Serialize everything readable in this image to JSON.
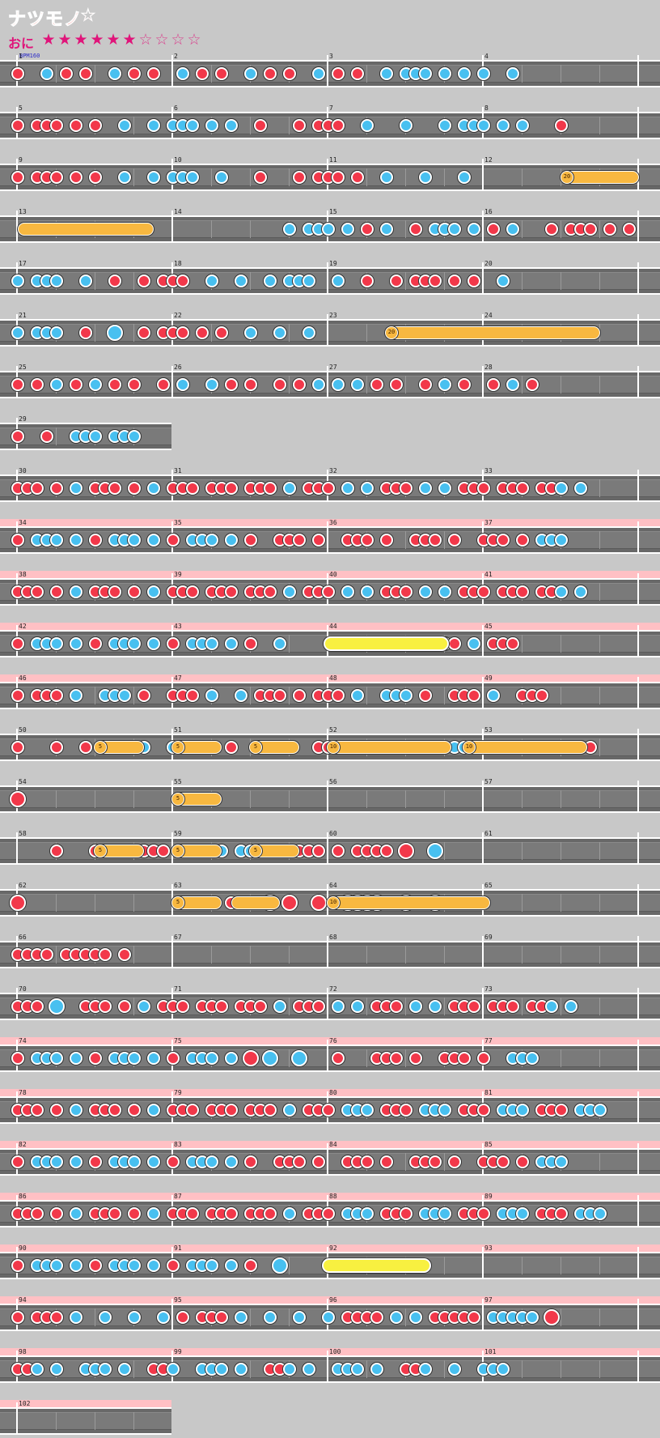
{
  "song": {
    "title": "ナツモノ",
    "title_star": "☆"
  },
  "difficulty": {
    "name": "おに",
    "stars_filled": 6,
    "stars_total": 10
  },
  "bpm_label": "BPM160",
  "measure_numbers": [
    "1",
    "2",
    "3",
    "4",
    "5",
    "6",
    "7",
    "8",
    "9",
    "10",
    "11",
    "12",
    "13",
    "14",
    "15",
    "16",
    "17",
    "18",
    "19",
    "20",
    "21",
    "22",
    "23",
    "24",
    "25",
    "26",
    "27",
    "28",
    "29",
    "30",
    "31",
    "32",
    "33",
    "34",
    "35",
    "36",
    "37",
    "38",
    "39",
    "40",
    "41",
    "42",
    "43",
    "44",
    "45",
    "46",
    "47",
    "48",
    "49",
    "50",
    "51",
    "52",
    "53",
    "54",
    "55",
    "56",
    "57",
    "58",
    "59",
    "60",
    "61",
    "62",
    "63",
    "64",
    "65",
    "66",
    "67",
    "68",
    "69",
    "70",
    "71",
    "72",
    "73",
    "74",
    "75",
    "76",
    "77",
    "78",
    "79",
    "80",
    "81",
    "82",
    "83",
    "84",
    "85",
    "86",
    "87",
    "88",
    "89",
    "90",
    "91",
    "92",
    "93",
    "94",
    "95",
    "96",
    "97",
    "98",
    "99",
    "100",
    "101",
    "102"
  ],
  "balloons": [
    "20",
    "20",
    "5",
    "5",
    "5",
    "10",
    "10",
    "5",
    "5",
    "5",
    "5",
    "5",
    "10"
  ],
  "colors": {
    "don": "#f2384a",
    "ka": "#48c0f0",
    "roll": "#f8b840",
    "big_roll": "#f8f040",
    "section_band": "#ffc0c4"
  },
  "rows": [
    {
      "notes": "d.k.d.d.k.d.d.k.d.d.k.d.d.k.d.d.d.k.d.k.k.k.k.k..k.",
      "pink": false
    },
    {
      "notes": "d.ddd.d.d.k.k.kkk.k.k.d.d.ddd.d.k.k.k.kkk.k.k.d.",
      "pink": false
    },
    {
      "notes": "d.ddd.d.d.k.k.kkk.k.k.d.d.ddd.d.k.k.k.k.B",
      "pink": false
    }
  ]
}
